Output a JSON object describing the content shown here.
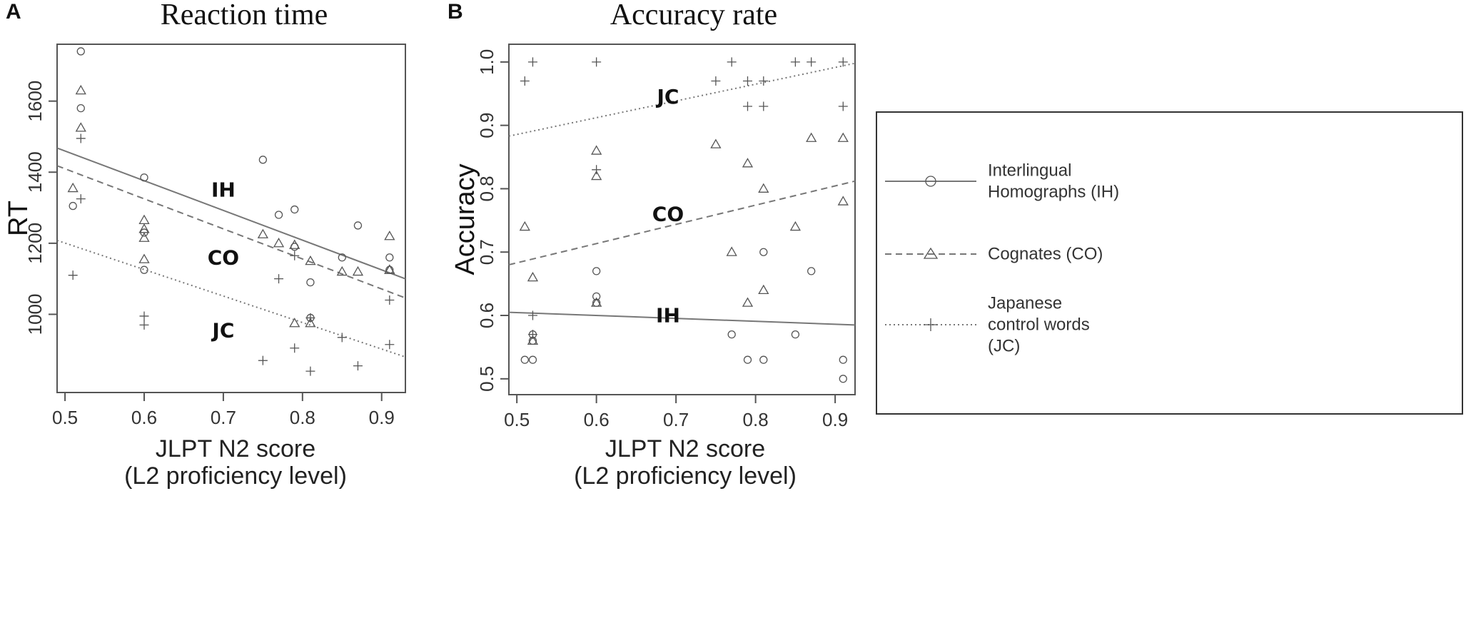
{
  "figure": {
    "width": 2061,
    "height": 901
  },
  "legend": {
    "items": [
      {
        "key": "IH",
        "lines": [
          "Interlingual",
          "Homographs (IH)"
        ],
        "dash": "solid",
        "marker": "circle"
      },
      {
        "key": "CO",
        "lines": [
          "Cognates (CO)"
        ],
        "dash": "dashed",
        "marker": "triangle"
      },
      {
        "key": "JC",
        "lines": [
          "Japanese",
          "control words",
          "(JC)"
        ],
        "dash": "dotted",
        "marker": "plus"
      }
    ]
  },
  "chart_data": [
    {
      "panel": "A",
      "type": "scatter",
      "title": "Reaction time",
      "xlabel": "JLPT N2 score",
      "xlabel2": "(L2 proficiency level)",
      "ylabel": "RT",
      "xlim": [
        0.49,
        0.93
      ],
      "ylim": [
        780,
        1760
      ],
      "xticks": [
        0.5,
        0.6,
        0.7,
        0.8,
        0.9
      ],
      "xtick_labels": [
        "0.5",
        "0.6",
        "0.7",
        "0.8",
        "0.9"
      ],
      "yticks": [
        1000,
        1200,
        1400,
        1600
      ],
      "ytick_labels": [
        "1000",
        "1200",
        "1400",
        "1600"
      ],
      "series": [
        {
          "name": "IH",
          "marker": "circle",
          "dash": "solid",
          "x": [
            0.51,
            0.52,
            0.52,
            0.6,
            0.6,
            0.6,
            0.75,
            0.77,
            0.79,
            0.79,
            0.81,
            0.81,
            0.85,
            0.87,
            0.91,
            0.91
          ],
          "y": [
            1305,
            1740,
            1580,
            1385,
            1230,
            1125,
            1435,
            1280,
            1295,
            1190,
            1090,
            990,
            1160,
            1250,
            1160,
            1125
          ],
          "fit": {
            "x": [
              0.49,
              0.93
            ],
            "y": [
              1468,
              1100
            ]
          },
          "label": {
            "text": "IH",
            "x": 0.7,
            "y": 1350
          }
        },
        {
          "name": "CO",
          "marker": "triangle",
          "dash": "dashed",
          "x": [
            0.51,
            0.52,
            0.52,
            0.6,
            0.6,
            0.6,
            0.6,
            0.75,
            0.77,
            0.79,
            0.79,
            0.81,
            0.81,
            0.85,
            0.87,
            0.91,
            0.91,
            0.91
          ],
          "y": [
            1355,
            1630,
            1525,
            1265,
            1240,
            1215,
            1155,
            1225,
            1200,
            1195,
            975,
            1150,
            975,
            1120,
            1120,
            1220,
            1125,
            1125
          ],
          "fit": {
            "x": [
              0.49,
              0.93
            ],
            "y": [
              1418,
              1046
            ]
          },
          "label": {
            "text": "CO",
            "x": 0.7,
            "y": 1160
          }
        },
        {
          "name": "JC",
          "marker": "plus",
          "dash": "dotted",
          "x": [
            0.51,
            0.52,
            0.52,
            0.6,
            0.6,
            0.75,
            0.77,
            0.79,
            0.79,
            0.81,
            0.81,
            0.85,
            0.87,
            0.91,
            0.91
          ],
          "y": [
            1110,
            1495,
            1325,
            995,
            970,
            870,
            1100,
            1165,
            905,
            990,
            840,
            935,
            855,
            1040,
            915
          ],
          "fit": {
            "x": [
              0.49,
              0.93
            ],
            "y": [
              1208,
              880
            ]
          },
          "label": {
            "text": "JC",
            "x": 0.7,
            "y": 955
          }
        }
      ]
    },
    {
      "panel": "B",
      "type": "scatter",
      "title": "Accuracy rate",
      "xlabel": "JLPT N2 score",
      "xlabel2": "(L2 proficiency level)",
      "ylabel": "Accuracy",
      "xlim": [
        0.49,
        0.925
      ],
      "ylim": [
        0.475,
        1.028
      ],
      "xticks": [
        0.5,
        0.6,
        0.7,
        0.8,
        0.9
      ],
      "xtick_labels": [
        "0.5",
        "0.6",
        "0.7",
        "0.8",
        "0.9"
      ],
      "yticks": [
        0.5,
        0.6,
        0.7,
        0.8,
        0.9,
        1.0
      ],
      "ytick_labels": [
        "0.5",
        "0.6",
        "0.7",
        "0.8",
        "0.9",
        "1.0"
      ],
      "series": [
        {
          "name": "IH",
          "marker": "circle",
          "dash": "solid",
          "x": [
            0.51,
            0.52,
            0.52,
            0.52,
            0.6,
            0.6,
            0.6,
            0.77,
            0.79,
            0.81,
            0.81,
            0.85,
            0.87,
            0.91,
            0.91
          ],
          "y": [
            0.53,
            0.57,
            0.56,
            0.53,
            0.67,
            0.63,
            0.62,
            0.57,
            0.53,
            0.7,
            0.53,
            0.57,
            0.67,
            0.53,
            0.5
          ],
          "fit": {
            "x": [
              0.49,
              0.925
            ],
            "y": [
              0.605,
              0.585
            ]
          },
          "label": {
            "text": "IH",
            "x": 0.69,
            "y": 0.6
          }
        },
        {
          "name": "CO",
          "marker": "triangle",
          "dash": "dashed",
          "x": [
            0.51,
            0.52,
            0.52,
            0.6,
            0.6,
            0.6,
            0.75,
            0.77,
            0.79,
            0.79,
            0.81,
            0.81,
            0.85,
            0.87,
            0.91,
            0.91
          ],
          "y": [
            0.74,
            0.66,
            0.56,
            0.86,
            0.82,
            0.62,
            0.87,
            0.7,
            0.84,
            0.62,
            0.8,
            0.64,
            0.74,
            0.88,
            0.88,
            0.78
          ],
          "fit": {
            "x": [
              0.49,
              0.925
            ],
            "y": [
              0.68,
              0.812
            ]
          },
          "label": {
            "text": "CO",
            "x": 0.69,
            "y": 0.76
          }
        },
        {
          "name": "JC",
          "marker": "plus",
          "dash": "dotted",
          "x": [
            0.51,
            0.52,
            0.52,
            0.52,
            0.6,
            0.6,
            0.75,
            0.77,
            0.79,
            0.79,
            0.81,
            0.81,
            0.85,
            0.87,
            0.91,
            0.91
          ],
          "y": [
            0.97,
            1.0,
            0.6,
            0.57,
            1.0,
            0.83,
            0.97,
            1.0,
            0.97,
            0.93,
            0.97,
            0.93,
            1.0,
            1.0,
            1.0,
            0.93
          ],
          "fit": {
            "x": [
              0.49,
              0.925
            ],
            "y": [
              0.883,
              0.998
            ]
          },
          "label": {
            "text": "JC",
            "x": 0.69,
            "y": 0.945
          }
        }
      ]
    }
  ]
}
